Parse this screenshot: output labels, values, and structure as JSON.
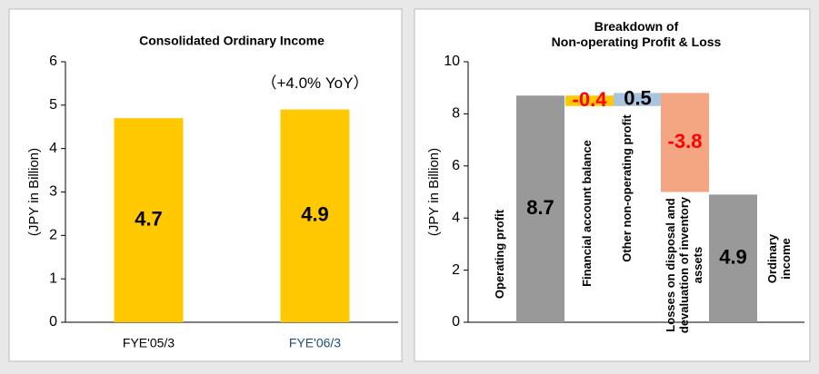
{
  "chart_data": [
    {
      "type": "bar",
      "title": "Consolidated Ordinary Income",
      "y_label": "(JPY in Billion)",
      "annotation": "（+4.0% YoY）",
      "categories": [
        "FYE'05/3",
        "FYE'06/3"
      ],
      "values": [
        4.7,
        4.9
      ],
      "color": "#ffc800",
      "ylim": [
        0,
        6
      ],
      "yticks": [
        0,
        1,
        2,
        3,
        4,
        5,
        6
      ]
    },
    {
      "type": "waterfall",
      "title": "Breakdown of\nNon-operating Profit & Loss",
      "y_label": "(JPY in Billion)",
      "categories": [
        "Operating profit",
        "Financial account balance",
        "Other non-operating profit",
        "Losses on disposal and devaluation of inventory assets",
        "Ordinary income"
      ],
      "values": [
        8.7,
        -0.4,
        0.5,
        -3.8,
        4.9
      ],
      "colors": [
        "#999999",
        "#ffc800",
        "#a9c4df",
        "#f4a582",
        "#999999"
      ],
      "ylim": [
        0,
        10
      ],
      "yticks": [
        0,
        2,
        4,
        6,
        8,
        10
      ]
    }
  ]
}
